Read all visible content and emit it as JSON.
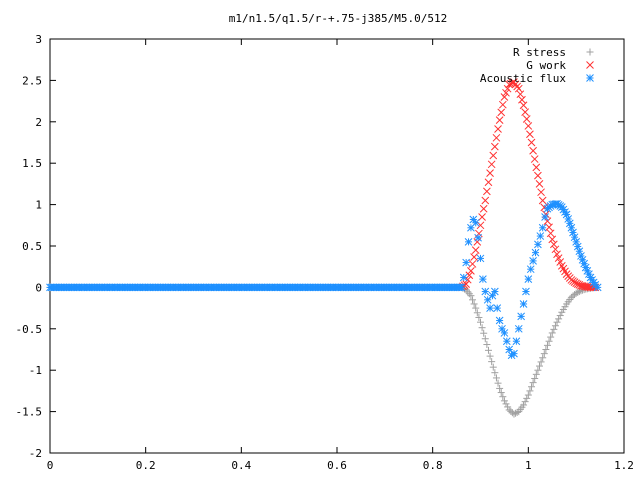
{
  "chart_data": {
    "type": "scatter",
    "title": "m1/n1.5/q1.5/r-+.75-j385/M5.0/512",
    "xlabel": "",
    "ylabel": "",
    "xlim": [
      0,
      1.2
    ],
    "ylim": [
      -2,
      3
    ],
    "x_ticks": [
      "0",
      "0.2",
      "0.4",
      "0.6",
      "0.8",
      "1",
      "1.2"
    ],
    "y_ticks": [
      "3",
      "2.5",
      "2",
      "1.5",
      "1",
      "0.5",
      "0",
      "-0.5",
      "-1",
      "-1.5",
      "-2"
    ],
    "grid": false,
    "legend_position": "top-right",
    "series": [
      {
        "name": "R stress",
        "marker": "plus",
        "color": "#a0a0a0",
        "points": [
          [
            0.0,
            0
          ],
          [
            0.1,
            0
          ],
          [
            0.2,
            0
          ],
          [
            0.3,
            0
          ],
          [
            0.4,
            0
          ],
          [
            0.5,
            0
          ],
          [
            0.6,
            0
          ],
          [
            0.7,
            0
          ],
          [
            0.8,
            0
          ],
          [
            0.86,
            0
          ],
          [
            0.87,
            -0.03
          ],
          [
            0.88,
            -0.1
          ],
          [
            0.89,
            -0.25
          ],
          [
            0.9,
            -0.42
          ],
          [
            0.91,
            -0.62
          ],
          [
            0.92,
            -0.83
          ],
          [
            0.93,
            -1.03
          ],
          [
            0.94,
            -1.22
          ],
          [
            0.95,
            -1.37
          ],
          [
            0.96,
            -1.48
          ],
          [
            0.97,
            -1.53
          ],
          [
            0.98,
            -1.5
          ],
          [
            0.99,
            -1.42
          ],
          [
            1.0,
            -1.3
          ],
          [
            1.01,
            -1.15
          ],
          [
            1.02,
            -1.0
          ],
          [
            1.03,
            -0.85
          ],
          [
            1.04,
            -0.7
          ],
          [
            1.05,
            -0.55
          ],
          [
            1.06,
            -0.42
          ],
          [
            1.07,
            -0.3
          ],
          [
            1.08,
            -0.2
          ],
          [
            1.09,
            -0.12
          ],
          [
            1.1,
            -0.07
          ],
          [
            1.11,
            -0.04
          ],
          [
            1.12,
            -0.02
          ],
          [
            1.13,
            -0.01
          ],
          [
            1.14,
            0
          ]
        ]
      },
      {
        "name": "G work",
        "marker": "cross",
        "color": "#ff3030",
        "points": [
          [
            0.86,
            0
          ],
          [
            0.87,
            0.04
          ],
          [
            0.88,
            0.2
          ],
          [
            0.89,
            0.45
          ],
          [
            0.9,
            0.75
          ],
          [
            0.91,
            1.05
          ],
          [
            0.92,
            1.38
          ],
          [
            0.93,
            1.7
          ],
          [
            0.94,
            2.02
          ],
          [
            0.95,
            2.3
          ],
          [
            0.96,
            2.45
          ],
          [
            0.97,
            2.48
          ],
          [
            0.98,
            2.4
          ],
          [
            0.99,
            2.2
          ],
          [
            1.0,
            1.95
          ],
          [
            1.01,
            1.65
          ],
          [
            1.02,
            1.35
          ],
          [
            1.03,
            1.05
          ],
          [
            1.04,
            0.8
          ],
          [
            1.05,
            0.58
          ],
          [
            1.06,
            0.4
          ],
          [
            1.07,
            0.26
          ],
          [
            1.08,
            0.16
          ],
          [
            1.09,
            0.09
          ],
          [
            1.1,
            0.05
          ],
          [
            1.11,
            0.02
          ],
          [
            1.12,
            0.01
          ],
          [
            1.13,
            0
          ],
          [
            1.14,
            0
          ]
        ]
      },
      {
        "name": "Acoustic flux",
        "marker": "star",
        "color": "#1e90ff",
        "points": [
          [
            0.0,
            0
          ],
          [
            0.1,
            0
          ],
          [
            0.2,
            0
          ],
          [
            0.3,
            0
          ],
          [
            0.4,
            0
          ],
          [
            0.5,
            0
          ],
          [
            0.6,
            0
          ],
          [
            0.7,
            0
          ],
          [
            0.8,
            0
          ],
          [
            0.86,
            0
          ],
          [
            0.865,
            0.12
          ],
          [
            0.87,
            0.3
          ],
          [
            0.875,
            0.55
          ],
          [
            0.88,
            0.72
          ],
          [
            0.885,
            0.82
          ],
          [
            0.89,
            0.78
          ],
          [
            0.895,
            0.6
          ],
          [
            0.9,
            0.35
          ],
          [
            0.905,
            0.1
          ],
          [
            0.91,
            -0.05
          ],
          [
            0.915,
            -0.15
          ],
          [
            0.92,
            -0.25
          ],
          [
            0.925,
            -0.1
          ],
          [
            0.93,
            -0.05
          ],
          [
            0.935,
            -0.25
          ],
          [
            0.94,
            -0.4
          ],
          [
            0.945,
            -0.5
          ],
          [
            0.95,
            -0.55
          ],
          [
            0.955,
            -0.65
          ],
          [
            0.96,
            -0.75
          ],
          [
            0.965,
            -0.82
          ],
          [
            0.97,
            -0.8
          ],
          [
            0.975,
            -0.65
          ],
          [
            0.98,
            -0.5
          ],
          [
            0.985,
            -0.35
          ],
          [
            0.99,
            -0.2
          ],
          [
            0.995,
            -0.05
          ],
          [
            1.0,
            0.1
          ],
          [
            1.005,
            0.22
          ],
          [
            1.01,
            0.32
          ],
          [
            1.015,
            0.42
          ],
          [
            1.02,
            0.52
          ],
          [
            1.025,
            0.62
          ],
          [
            1.03,
            0.72
          ],
          [
            1.035,
            0.85
          ],
          [
            1.04,
            0.95
          ],
          [
            1.05,
            1.0
          ],
          [
            1.06,
            1.01
          ],
          [
            1.07,
            0.97
          ],
          [
            1.08,
            0.88
          ],
          [
            1.09,
            0.72
          ],
          [
            1.1,
            0.55
          ],
          [
            1.11,
            0.38
          ],
          [
            1.12,
            0.24
          ],
          [
            1.13,
            0.12
          ],
          [
            1.14,
            0.03
          ],
          [
            1.145,
            0
          ]
        ]
      }
    ]
  }
}
